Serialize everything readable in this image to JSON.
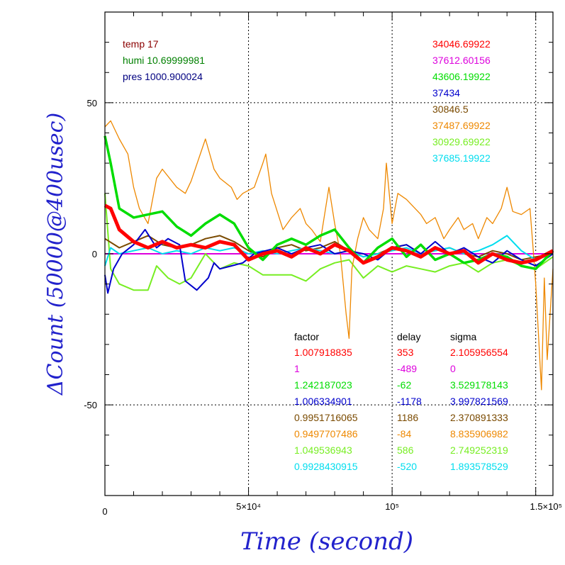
{
  "chart_data": {
    "type": "line",
    "xlabel": "Time (second)",
    "ylabel": "ΔCount (50000@400usec)",
    "xlim": [
      0,
      156000
    ],
    "ylim": [
      -80,
      80
    ],
    "grid": "dotted at x=5e4, 1e5, 1.5e5 and y=-50, 0, 50",
    "x_ticks": [
      {
        "value": 0,
        "label": "0"
      },
      {
        "value": 50000,
        "label": "5×10⁴"
      },
      {
        "value": 100000,
        "label": "10⁵"
      },
      {
        "value": 150000,
        "label": "1.5×10⁵"
      }
    ],
    "y_ticks": [
      {
        "value": 50,
        "label": "50"
      },
      {
        "value": 0,
        "label": "0"
      },
      {
        "value": -50,
        "label": "-50"
      }
    ],
    "env": [
      {
        "text": "temp 17",
        "color": "#8b0000"
      },
      {
        "text": "humi 10.69999981",
        "color": "#008000"
      },
      {
        "text": "pres 1000.900024",
        "color": "#000080"
      }
    ],
    "table_headers": [
      "factor",
      "delay",
      "sigma"
    ],
    "series": [
      {
        "mean": "34046.69922",
        "factor": "1.007918835",
        "delay": "353",
        "sigma": "2.105956554",
        "color": "#ff0000",
        "points": [
          [
            0,
            16
          ],
          [
            2000,
            15
          ],
          [
            5000,
            8
          ],
          [
            10000,
            4
          ],
          [
            15000,
            2
          ],
          [
            20000,
            4
          ],
          [
            25000,
            2
          ],
          [
            30000,
            3
          ],
          [
            35000,
            2
          ],
          [
            40000,
            4
          ],
          [
            45000,
            3
          ],
          [
            50000,
            -2
          ],
          [
            55000,
            0
          ],
          [
            60000,
            1
          ],
          [
            65000,
            -1
          ],
          [
            70000,
            2
          ],
          [
            75000,
            0
          ],
          [
            80000,
            3
          ],
          [
            85000,
            1
          ],
          [
            90000,
            -3
          ],
          [
            95000,
            -1
          ],
          [
            100000,
            2
          ],
          [
            105000,
            1
          ],
          [
            110000,
            -1
          ],
          [
            115000,
            2
          ],
          [
            120000,
            0
          ],
          [
            125000,
            1
          ],
          [
            130000,
            -3
          ],
          [
            135000,
            0
          ],
          [
            140000,
            -2
          ],
          [
            145000,
            -3
          ],
          [
            150000,
            -2
          ],
          [
            156000,
            1
          ]
        ]
      },
      {
        "mean": "37612.60156",
        "factor": "1",
        "delay": "-489",
        "sigma": "0",
        "color": "#dd00dd",
        "points": [
          [
            0,
            0
          ],
          [
            20000,
            0
          ],
          [
            40000,
            0
          ],
          [
            60000,
            0
          ],
          [
            80000,
            0
          ],
          [
            100000,
            0
          ],
          [
            120000,
            0
          ],
          [
            140000,
            0
          ],
          [
            156000,
            0
          ]
        ]
      },
      {
        "mean": "43606.19922",
        "factor": "1.242187023",
        "delay": "-62",
        "sigma": "3.529178143",
        "color": "#00dd00",
        "points": [
          [
            0,
            39
          ],
          [
            2000,
            30
          ],
          [
            5000,
            15
          ],
          [
            10000,
            12
          ],
          [
            15000,
            13
          ],
          [
            20000,
            14
          ],
          [
            25000,
            9
          ],
          [
            30000,
            6
          ],
          [
            35000,
            10
          ],
          [
            40000,
            13
          ],
          [
            45000,
            10
          ],
          [
            50000,
            2
          ],
          [
            55000,
            -2
          ],
          [
            60000,
            3
          ],
          [
            65000,
            5
          ],
          [
            70000,
            3
          ],
          [
            75000,
            6
          ],
          [
            80000,
            8
          ],
          [
            85000,
            2
          ],
          [
            90000,
            -3
          ],
          [
            95000,
            2
          ],
          [
            100000,
            5
          ],
          [
            105000,
            -1
          ],
          [
            110000,
            3
          ],
          [
            115000,
            -2
          ],
          [
            120000,
            0
          ],
          [
            125000,
            -3
          ],
          [
            130000,
            -2
          ],
          [
            135000,
            0
          ],
          [
            140000,
            -1
          ],
          [
            145000,
            -4
          ],
          [
            150000,
            -5
          ],
          [
            156000,
            1
          ]
        ]
      },
      {
        "mean": "37434",
        "factor": "1.006334901",
        "delay": "-1178",
        "sigma": "3.997821569",
        "color": "#0000cc",
        "points": [
          [
            0,
            -7
          ],
          [
            1000,
            -13
          ],
          [
            3000,
            -5
          ],
          [
            6000,
            0
          ],
          [
            10000,
            3
          ],
          [
            14000,
            8
          ],
          [
            18000,
            2
          ],
          [
            22000,
            5
          ],
          [
            26000,
            3
          ],
          [
            28000,
            -9
          ],
          [
            32000,
            -12
          ],
          [
            34000,
            -10
          ],
          [
            36000,
            -8
          ],
          [
            38000,
            -3
          ],
          [
            40000,
            -5
          ],
          [
            44000,
            -4
          ],
          [
            48000,
            -3
          ],
          [
            52000,
            0
          ],
          [
            56000,
            1
          ],
          [
            60000,
            2
          ],
          [
            65000,
            0
          ],
          [
            70000,
            2
          ],
          [
            75000,
            3
          ],
          [
            80000,
            0
          ],
          [
            85000,
            1
          ],
          [
            90000,
            0
          ],
          [
            95000,
            -2
          ],
          [
            100000,
            2
          ],
          [
            105000,
            3
          ],
          [
            110000,
            0
          ],
          [
            115000,
            4
          ],
          [
            120000,
            0
          ],
          [
            125000,
            2
          ],
          [
            130000,
            -1
          ],
          [
            135000,
            -3
          ],
          [
            140000,
            1
          ],
          [
            145000,
            -2
          ],
          [
            150000,
            -4
          ],
          [
            156000,
            0
          ]
        ]
      },
      {
        "mean": "30846.5",
        "factor": "0.9951716065",
        "delay": "1186",
        "sigma": "2.370891333",
        "color": "#7a4a00",
        "points": [
          [
            0,
            5
          ],
          [
            5000,
            2
          ],
          [
            10000,
            4
          ],
          [
            15000,
            6
          ],
          [
            20000,
            3
          ],
          [
            25000,
            2
          ],
          [
            30000,
            3
          ],
          [
            35000,
            5
          ],
          [
            40000,
            6
          ],
          [
            45000,
            4
          ],
          [
            50000,
            1
          ],
          [
            55000,
            -1
          ],
          [
            60000,
            2
          ],
          [
            65000,
            3
          ],
          [
            70000,
            1
          ],
          [
            75000,
            2
          ],
          [
            80000,
            4
          ],
          [
            85000,
            1
          ],
          [
            90000,
            -1
          ],
          [
            95000,
            0
          ],
          [
            100000,
            2
          ],
          [
            105000,
            3
          ],
          [
            110000,
            0
          ],
          [
            115000,
            1
          ],
          [
            120000,
            2
          ],
          [
            125000,
            0
          ],
          [
            130000,
            -1
          ],
          [
            135000,
            1
          ],
          [
            140000,
            0
          ],
          [
            145000,
            -2
          ],
          [
            150000,
            -1
          ],
          [
            156000,
            0
          ]
        ]
      },
      {
        "mean": "37487.69922",
        "factor": "0.9497707486",
        "delay": "-84",
        "sigma": "8.835906982",
        "color": "#ee8800",
        "points": [
          [
            0,
            42
          ],
          [
            2000,
            44
          ],
          [
            5000,
            38
          ],
          [
            8000,
            33
          ],
          [
            10000,
            22
          ],
          [
            12000,
            15
          ],
          [
            15000,
            10
          ],
          [
            18000,
            25
          ],
          [
            20000,
            28
          ],
          [
            25000,
            22
          ],
          [
            28000,
            20
          ],
          [
            30000,
            24
          ],
          [
            35000,
            38
          ],
          [
            38000,
            28
          ],
          [
            40000,
            25
          ],
          [
            44000,
            22
          ],
          [
            46000,
            18
          ],
          [
            48000,
            20
          ],
          [
            52000,
            22
          ],
          [
            55000,
            30
          ],
          [
            56000,
            33
          ],
          [
            58000,
            20
          ],
          [
            62000,
            8
          ],
          [
            65000,
            12
          ],
          [
            68000,
            15
          ],
          [
            70000,
            10
          ],
          [
            72000,
            8
          ],
          [
            75000,
            4
          ],
          [
            78000,
            22
          ],
          [
            80000,
            10
          ],
          [
            82000,
            0
          ],
          [
            84000,
            -20
          ],
          [
            85000,
            -28
          ],
          [
            86000,
            -5
          ],
          [
            88000,
            5
          ],
          [
            90000,
            12
          ],
          [
            92000,
            8
          ],
          [
            95000,
            5
          ],
          [
            97000,
            15
          ],
          [
            98000,
            30
          ],
          [
            100000,
            10
          ],
          [
            102000,
            20
          ],
          [
            105000,
            18
          ],
          [
            108000,
            15
          ],
          [
            110000,
            13
          ],
          [
            112000,
            10
          ],
          [
            115000,
            12
          ],
          [
            118000,
            5
          ],
          [
            120000,
            8
          ],
          [
            123000,
            12
          ],
          [
            125000,
            8
          ],
          [
            128000,
            10
          ],
          [
            130000,
            5
          ],
          [
            133000,
            12
          ],
          [
            135000,
            10
          ],
          [
            138000,
            15
          ],
          [
            140000,
            22
          ],
          [
            142000,
            14
          ],
          [
            145000,
            13
          ],
          [
            148000,
            15
          ],
          [
            149000,
            3
          ],
          [
            150000,
            -10
          ],
          [
            152000,
            -45
          ],
          [
            153000,
            -8
          ],
          [
            154000,
            -35
          ],
          [
            156000,
            -5
          ]
        ]
      },
      {
        "mean": "30929.69922",
        "factor": "1.049536943",
        "delay": "586",
        "sigma": "2.749252319",
        "color": "#77ee22",
        "points": [
          [
            0,
            20
          ],
          [
            2000,
            -5
          ],
          [
            5000,
            -10
          ],
          [
            10000,
            -12
          ],
          [
            15000,
            -12
          ],
          [
            18000,
            -4
          ],
          [
            22000,
            -8
          ],
          [
            26000,
            -10
          ],
          [
            30000,
            -8
          ],
          [
            35000,
            0
          ],
          [
            40000,
            -5
          ],
          [
            45000,
            -3
          ],
          [
            50000,
            -4
          ],
          [
            55000,
            -7
          ],
          [
            60000,
            -7
          ],
          [
            65000,
            -7
          ],
          [
            70000,
            -9
          ],
          [
            75000,
            -5
          ],
          [
            80000,
            -3
          ],
          [
            85000,
            -2
          ],
          [
            90000,
            -8
          ],
          [
            95000,
            -4
          ],
          [
            100000,
            -6
          ],
          [
            105000,
            -4
          ],
          [
            110000,
            -5
          ],
          [
            115000,
            -6
          ],
          [
            120000,
            -4
          ],
          [
            125000,
            -3
          ],
          [
            130000,
            -6
          ],
          [
            135000,
            -3
          ],
          [
            140000,
            -2
          ],
          [
            145000,
            -4
          ],
          [
            150000,
            -5
          ],
          [
            156000,
            -1
          ]
        ]
      },
      {
        "mean": "37685.19922",
        "factor": "0.9928430915",
        "delay": "-520",
        "sigma": "1.893578529",
        "color": "#00ddee",
        "points": [
          [
            0,
            -4
          ],
          [
            2000,
            2
          ],
          [
            5000,
            0
          ],
          [
            10000,
            1
          ],
          [
            15000,
            2
          ],
          [
            20000,
            0
          ],
          [
            25000,
            1
          ],
          [
            30000,
            0
          ],
          [
            35000,
            2
          ],
          [
            40000,
            1
          ],
          [
            45000,
            2
          ],
          [
            50000,
            0
          ],
          [
            55000,
            1
          ],
          [
            60000,
            0
          ],
          [
            65000,
            1
          ],
          [
            70000,
            2
          ],
          [
            75000,
            1
          ],
          [
            80000,
            0
          ],
          [
            85000,
            1
          ],
          [
            90000,
            -1
          ],
          [
            95000,
            0
          ],
          [
            100000,
            1
          ],
          [
            105000,
            2
          ],
          [
            110000,
            0
          ],
          [
            115000,
            1
          ],
          [
            120000,
            2
          ],
          [
            125000,
            0
          ],
          [
            130000,
            1
          ],
          [
            135000,
            3
          ],
          [
            140000,
            6
          ],
          [
            145000,
            1
          ],
          [
            150000,
            -2
          ],
          [
            156000,
            0
          ]
        ]
      }
    ]
  }
}
